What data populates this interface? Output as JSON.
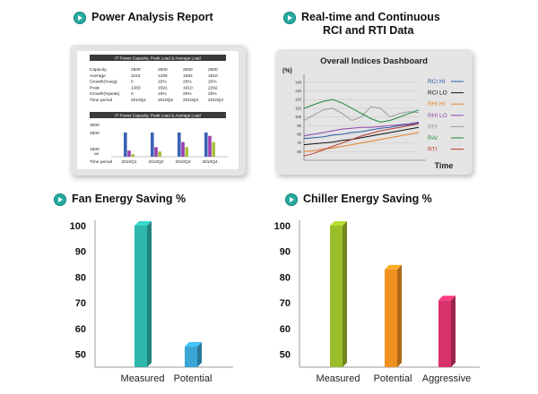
{
  "icons": {
    "bullet": "chevron-right-circle-icon",
    "bullet_color": "#27a9a0"
  },
  "sections": {
    "power": {
      "title": "Power Analysis Report"
    },
    "realtime": {
      "title_line1": "Real-time and Continuous",
      "title_line2": "RCI and RTI Data"
    },
    "fan": {
      "title": "Fan Energy Saving %"
    },
    "chiller": {
      "title": "Chiller Energy Saving %"
    }
  },
  "power_report": {
    "table_title": "IT Power Capacity, Peak Load & Average Load",
    "rows": [
      {
        "label": "Capacity",
        "values": [
          "2500",
          "2500",
          "2500",
          "2500"
        ]
      },
      {
        "label": "Average",
        "values": [
          "1153",
          "1326",
          "1592",
          "1910"
        ]
      },
      {
        "label": "Growth(%avg)",
        "values": [
          "0",
          "15%",
          "20%",
          "20%"
        ]
      },
      {
        "label": "Peak",
        "values": [
          "1383",
          "1591",
          "1910",
          "2292"
        ]
      },
      {
        "label": "Growth(%peak)",
        "values": [
          "0",
          "15%",
          "20%",
          "20%"
        ]
      },
      {
        "label": "Time period",
        "values": [
          "2010Q1",
          "2010Q2",
          "2010Q3",
          "2010Q4"
        ]
      }
    ],
    "chart_title": "IT Power Capacity, Peak Load & Average Load",
    "y_ticks": [
      "3000",
      "2500",
      "1500"
    ],
    "y_unit": "kW",
    "x_label": "Time period"
  },
  "dashboard": {
    "title": "Overall Indices Dashboard",
    "y_label": "(%)",
    "x_label": "Time",
    "legend": [
      {
        "name": "RCI HI",
        "color": "#2a5caa"
      },
      {
        "name": "RCI LO",
        "color": "#111111"
      },
      {
        "name": "RHI HI",
        "color": "#e8822a"
      },
      {
        "name": "RHI LO",
        "color": "#8e44ad"
      },
      {
        "name": "RPI",
        "color": "#9a9a9a"
      },
      {
        "name": "RAI",
        "color": "#1e8a3c"
      },
      {
        "name": "RTI",
        "color": "#c0392b"
      }
    ]
  },
  "chart_data": [
    {
      "type": "bar",
      "title": "IT Power Capacity, Peak Load & Average Load",
      "categories": [
        "2010Q1",
        "2010Q2",
        "2010Q3",
        "2010Q4"
      ],
      "series": [
        {
          "name": "Capacity",
          "values": [
            2500,
            2500,
            2500,
            2500
          ]
        },
        {
          "name": "Peak",
          "values": [
            1383,
            1591,
            1910,
            2292
          ]
        },
        {
          "name": "Average",
          "values": [
            1153,
            1326,
            1592,
            1910
          ]
        }
      ],
      "ylabel": "kW",
      "colors": [
        "#3a62b5",
        "#9b3fb0",
        "#a6bf3a"
      ]
    },
    {
      "type": "line",
      "title": "Overall Indices Dashboard",
      "ylabel": "(%)",
      "xlabel": "Time",
      "ylim": [
        50,
        145
      ],
      "y_ticks": [
        60,
        70,
        80,
        90,
        100,
        110,
        120,
        130,
        140
      ],
      "x": [
        0,
        1,
        2,
        3,
        4,
        5,
        6,
        7,
        8,
        9,
        10,
        11,
        12
      ],
      "series": [
        {
          "name": "RCI HI",
          "color": "#2a5caa",
          "values": [
            75,
            76,
            77,
            79,
            80,
            82,
            83,
            85,
            87,
            88,
            90,
            91,
            93
          ]
        },
        {
          "name": "RCI LO",
          "color": "#111111",
          "values": [
            68,
            69,
            70,
            71,
            73,
            74,
            76,
            78,
            80,
            82,
            84,
            86,
            88
          ]
        },
        {
          "name": "RHI HI",
          "color": "#e8822a",
          "values": [
            60,
            61,
            63,
            64,
            66,
            68,
            70,
            72,
            74,
            76,
            78,
            80,
            82
          ]
        },
        {
          "name": "RHI LO",
          "color": "#8e44ad",
          "values": [
            78,
            80,
            82,
            84,
            86,
            87,
            88,
            88,
            89,
            90,
            91,
            92,
            94
          ]
        },
        {
          "name": "RPI",
          "color": "#9a9a9a",
          "values": [
            96,
            102,
            108,
            110,
            104,
            96,
            100,
            112,
            110,
            100,
            104,
            106,
            105
          ]
        },
        {
          "name": "RAI",
          "color": "#1e8a3c",
          "values": [
            110,
            114,
            118,
            120,
            116,
            110,
            104,
            98,
            94,
            96,
            100,
            104,
            108
          ]
        },
        {
          "name": "RTI",
          "color": "#c0392b",
          "values": [
            55,
            58,
            62,
            66,
            70,
            74,
            78,
            81,
            84,
            86,
            88,
            90,
            92
          ]
        }
      ]
    },
    {
      "type": "bar",
      "title": "Fan Energy Saving %",
      "categories": [
        "Measured",
        "Potential"
      ],
      "values": [
        100,
        53
      ],
      "colors": [
        "#2eb8ad",
        "#3aa6d6"
      ],
      "y_ticks": [
        50,
        60,
        70,
        80,
        90,
        100
      ],
      "ylim": [
        45,
        100
      ]
    },
    {
      "type": "bar",
      "title": "Chiller Energy Saving %",
      "categories": [
        "Measured",
        "Potential",
        "Aggressive"
      ],
      "values": [
        100,
        83,
        71
      ],
      "colors": [
        "#9bbd2a",
        "#f0901e",
        "#d8326d"
      ],
      "y_ticks": [
        50,
        60,
        70,
        80,
        90,
        100
      ],
      "ylim": [
        45,
        100
      ]
    }
  ]
}
